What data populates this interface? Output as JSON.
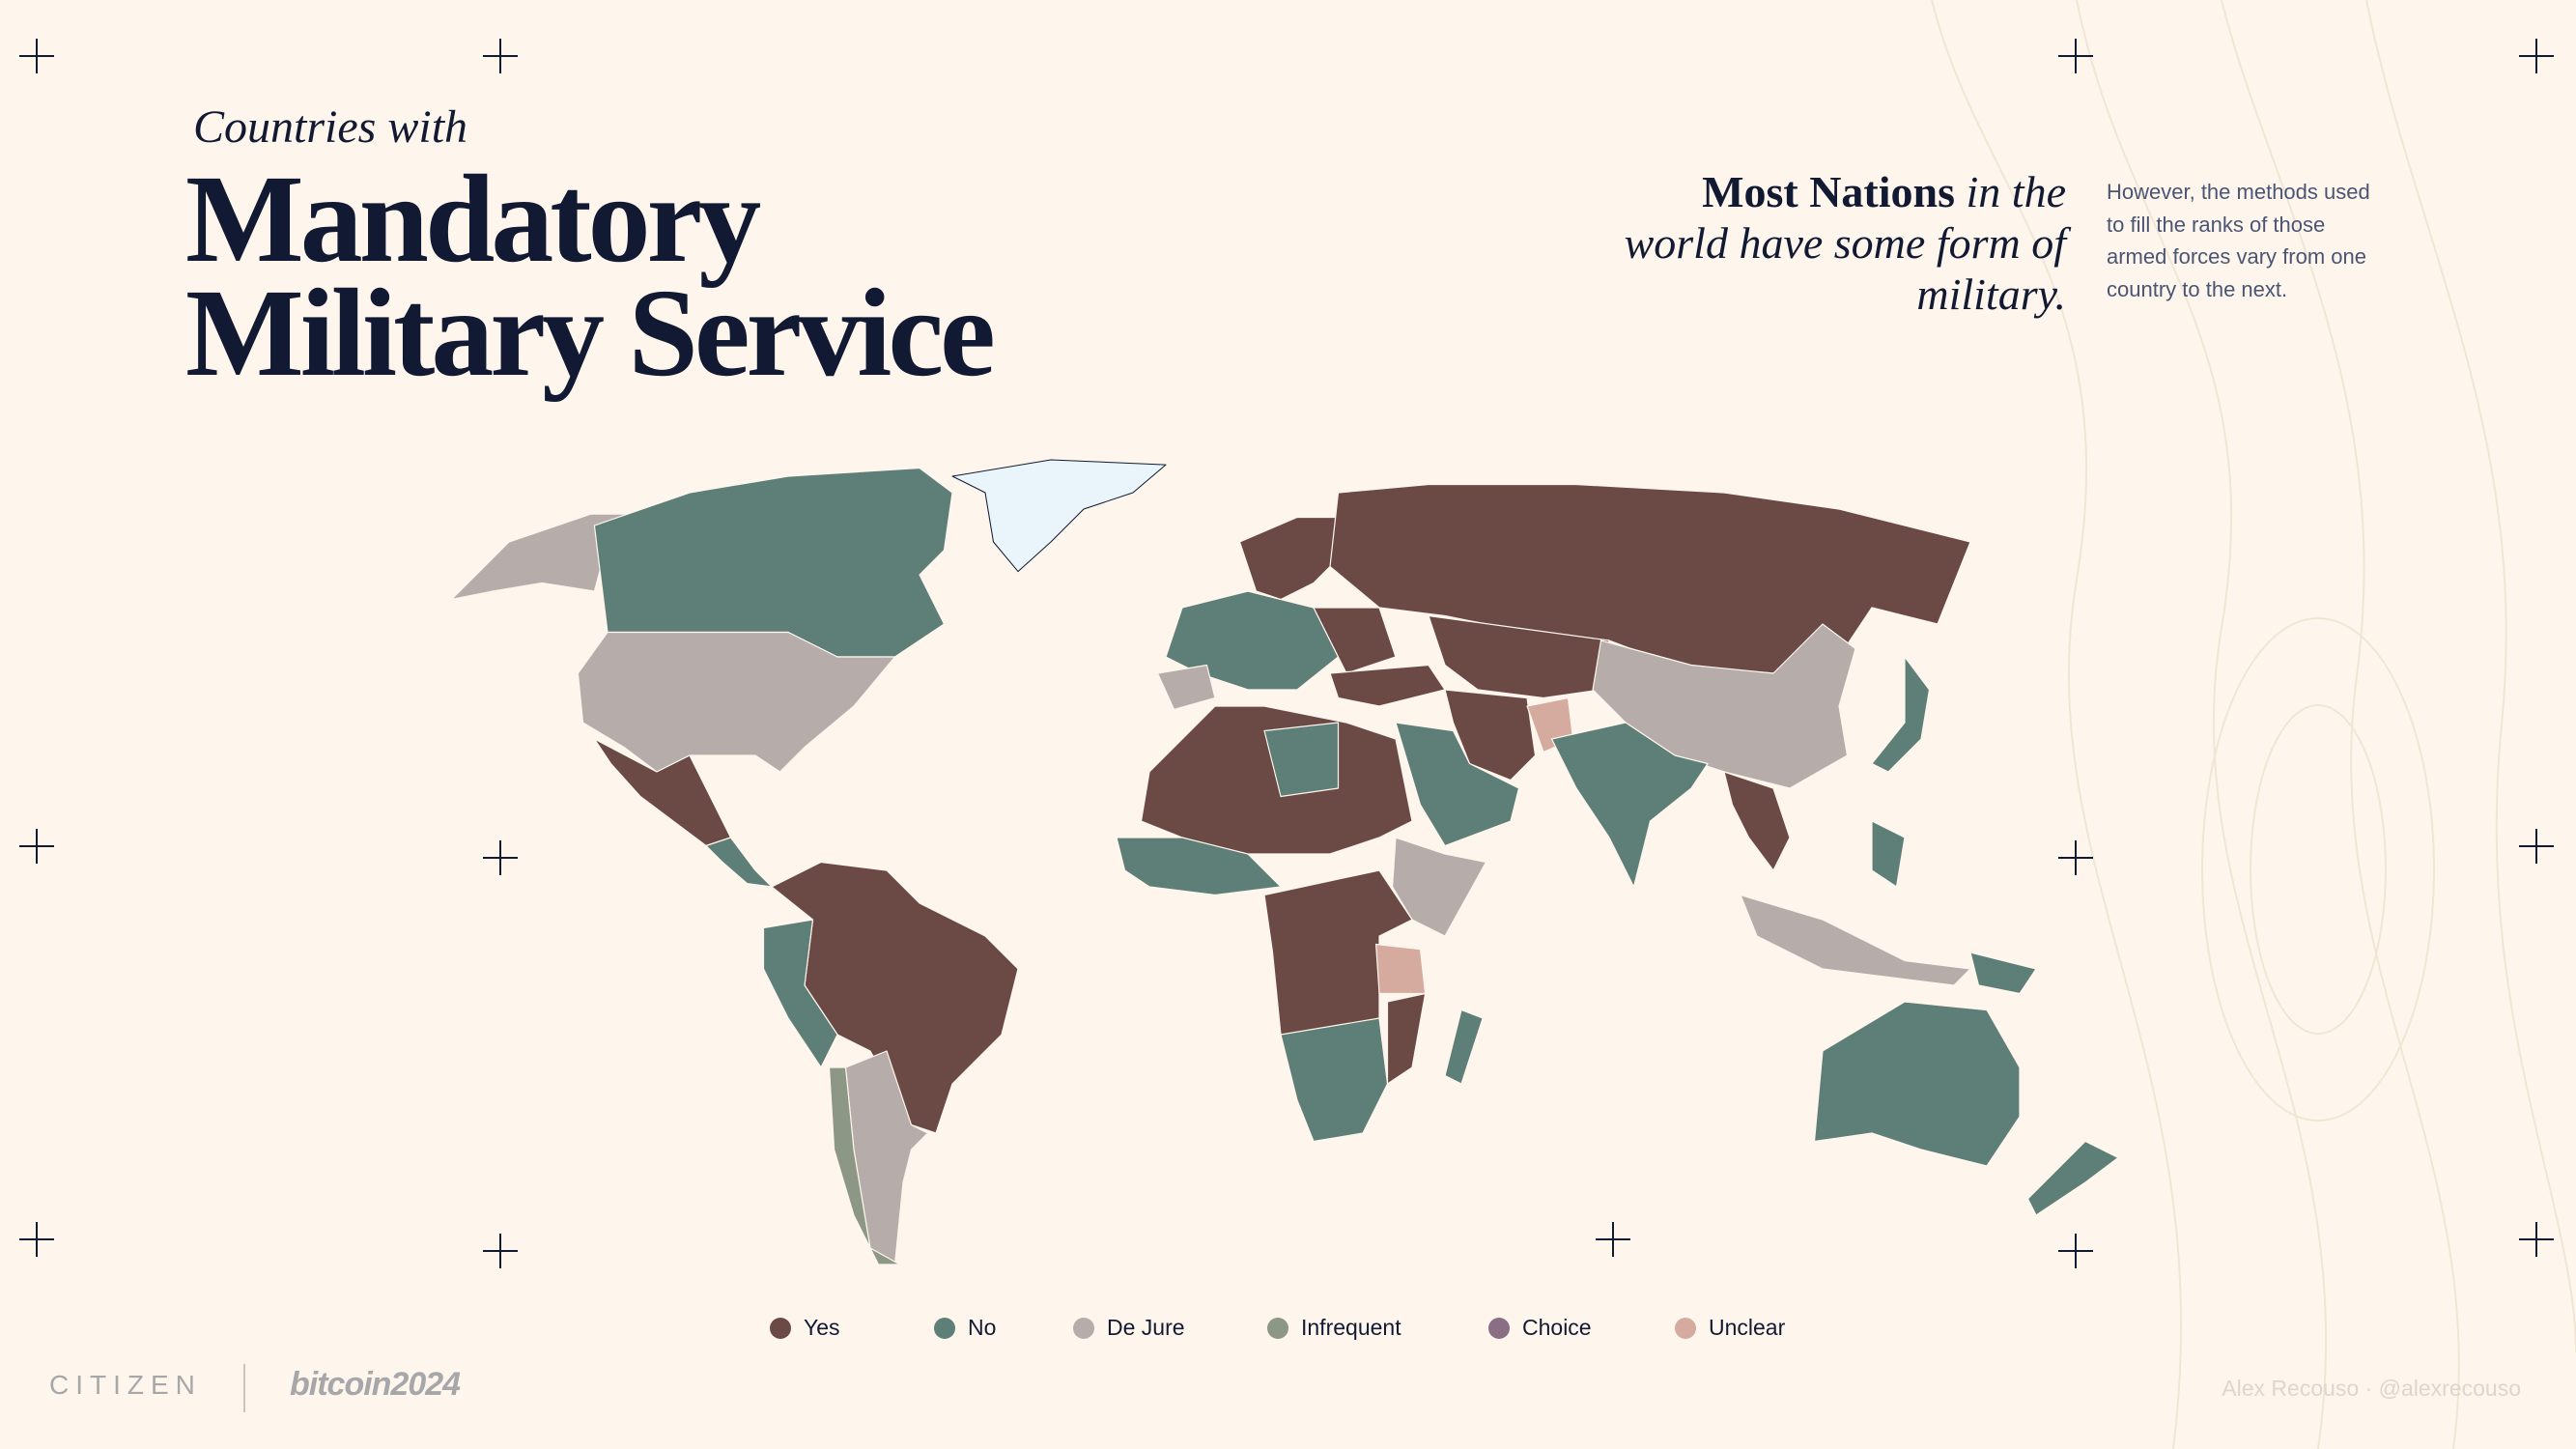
{
  "header": {
    "kicker": "Countries with",
    "title_lines": [
      "Mandatory",
      "Military Service"
    ]
  },
  "callout": {
    "headline_strong": "Most Nations",
    "headline_lines": [
      "in the",
      "world have some form of",
      "military."
    ],
    "body_lines": [
      "However, the methods used",
      "to fill the ranks of those",
      "armed forces vary from one",
      "country to the next."
    ]
  },
  "legend": [
    {
      "label": "Yes",
      "color": "#6b4a46"
    },
    {
      "label": "No",
      "color": "#5e7f78"
    },
    {
      "label": "De Jure",
      "color": "#b6adab"
    },
    {
      "label": "Infrequent",
      "color": "#8d9786"
    },
    {
      "label": "Choice",
      "color": "#8a6f84"
    },
    {
      "label": "Unclear",
      "color": "#d5aa9f"
    }
  ],
  "footer": {
    "brand": "CITIZEN",
    "partner": "bitcoin2024",
    "credit": "Alex Recouso · @alexrecouso"
  }
}
